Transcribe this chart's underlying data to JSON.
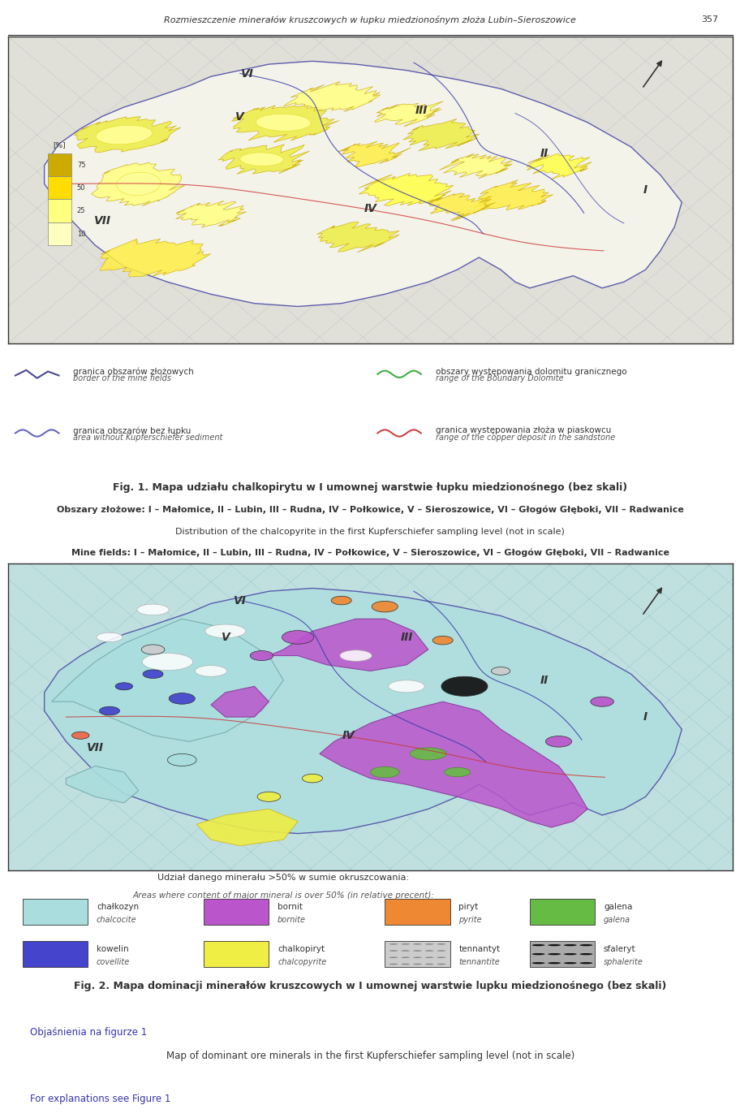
{
  "page_header": "Rozmieszczenie minerałów kruszcowych w łupku miedzionośnym złoża Lubin–Sieroszowice",
  "page_number": "357",
  "fig1_caption_pl": "Fig. 1. Mapa udziału chalkopirytu w I umownej warstwie łupku miedzionośnego (bez skali)",
  "fig1_caption_sub_pl": "Obszary złożowe: I – Małomice, II – Lubin, III – Rudna, IV – Połkowice, V – Sieroszowice, VI – Głogów Głęboki, VII – Radwanice",
  "fig1_caption_en": "Distribution of the chalcopyrite in the first Kupferschiefer sampling level (not in scale)",
  "fig1_caption_sub_en": "Mine fields: I – Małomice, II – Lubin, III – Rudna, IV – Połkowice, V – Sieroszowice, VI – Głogów Głęboki, VII – Radwanice",
  "fig2_caption_pl": "Fig. 2. Mapa dominacji minerałów kruszcowych w I umownej warstwie lupku miedzionośnego (bez skali)",
  "fig2_caption_sub_pl": "Objaśnienia na figurze 1",
  "fig2_caption_en": "Map of dominant ore minerals in the first Kupferschiefer sampling level (not in scale)",
  "fig2_caption_sub_en": "For explanations see Figure 1",
  "legend1_items": [
    {
      "symbol": "zigzag_dark",
      "color": "#4a4a8a",
      "label_pl": "granica obszarów złożowych",
      "label_en": "border of the mine fields"
    },
    {
      "symbol": "wave_blue",
      "color": "#6666bb",
      "label_pl": "granica obszarów bez łupku",
      "label_en": "area without Kupferschiefer sediment"
    },
    {
      "symbol": "wave_green",
      "color": "#44aa44",
      "label_pl": "obszary występowania dolomitu granicznego",
      "label_en": "range of the Boundary Dolomite"
    },
    {
      "symbol": "wave_red",
      "color": "#cc4444",
      "label_pl": "granica występowania złoża w piaskowcu",
      "label_en": "range of the copper deposit in the sandstone"
    }
  ],
  "colorbar_values": [
    10,
    25,
    50,
    75
  ],
  "colorbar_colors": [
    "#ffffc0",
    "#ffff80",
    "#ffdd00",
    "#ccaa00"
  ],
  "legend2_items": [
    {
      "color": "#aadddd",
      "label_pl": "chałkozyn",
      "label_en": "chalcocite"
    },
    {
      "color": "#4444cc",
      "label_pl": "kowelin",
      "label_en": "covellite"
    },
    {
      "color": "#bb55cc",
      "label_pl": "bornit",
      "label_en": "bornite"
    },
    {
      "color": "#eeee44",
      "label_pl": "chalkopiryt",
      "label_en": "chalcopyrite"
    },
    {
      "color": "#ee8833",
      "label_pl": "piryt",
      "label_en": "pyrite"
    },
    {
      "color": "#999999",
      "label_pl": "tennantyt",
      "label_en": "tennantite"
    },
    {
      "color": "#66bb44",
      "label_pl": "galena",
      "label_en": "galena"
    },
    {
      "color": "#111111",
      "label_pl": "sfaleryt",
      "label_en": "sphalerite"
    }
  ],
  "legend2_header_pl": "Udział danego minerału >50% w sumie okruszcowania:",
  "legend2_header_en": "Areas where content of major mineral is over 50% (in relative precent):",
  "bg_color": "#ffffff",
  "map_bg": "#f5f5f0",
  "map_frame_color": "#333333"
}
